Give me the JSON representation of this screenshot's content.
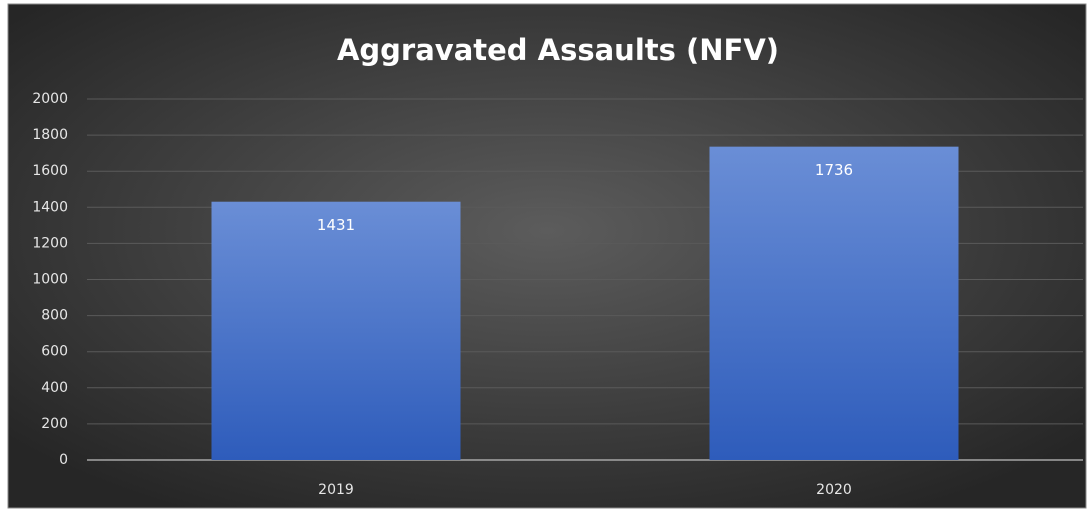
{
  "chart_data": {
    "type": "bar",
    "title": "Aggravated Assaults (NFV)",
    "categories": [
      "2019",
      "2020"
    ],
    "values": [
      1431,
      1736
    ],
    "color": "#4472c4",
    "ylim": [
      0,
      2000
    ],
    "yticks": [
      0,
      200,
      400,
      600,
      800,
      1000,
      1200,
      1400,
      1600,
      1800,
      2000
    ],
    "grid": true,
    "data_labels": true
  }
}
